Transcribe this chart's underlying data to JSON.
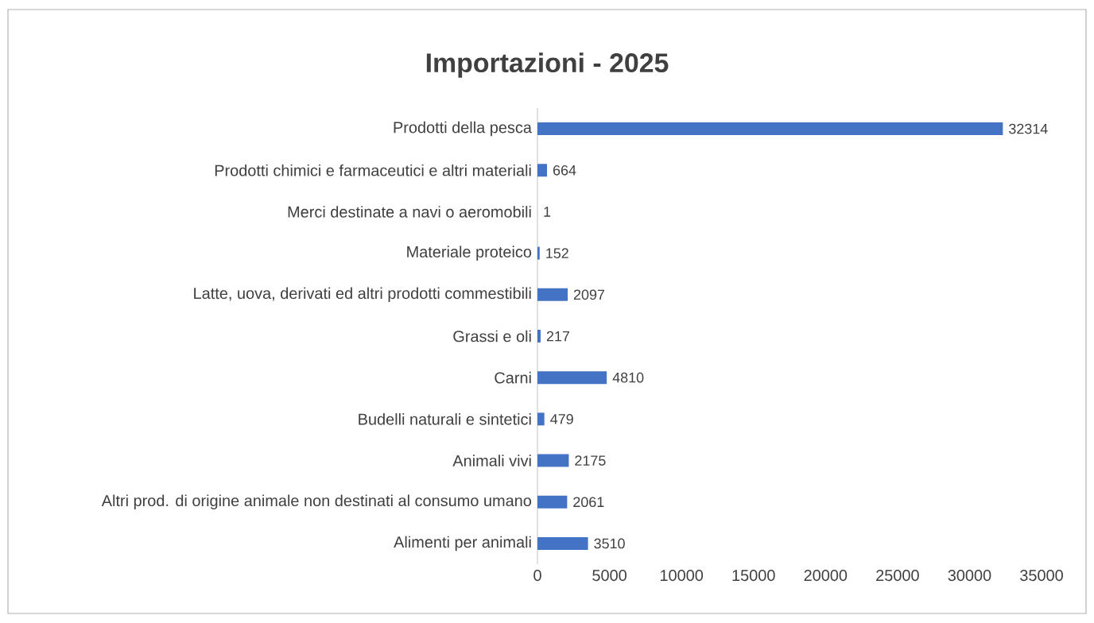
{
  "chart_data": {
    "type": "bar",
    "orientation": "horizontal",
    "title": "Importazioni  - 2025",
    "categories": [
      "Prodotti della pesca",
      "Prodotti chimici e farmaceutici e altri materiali",
      "Merci destinate a navi o aeromobili",
      "Materiale proteico",
      "Latte, uova, derivati ed altri prodotti commestibili",
      "Grassi e oli",
      "Carni",
      "Budelli naturali e sintetici",
      "Animali vivi",
      "Altri prod. di origine animale non destinati al consumo umano",
      "Alimenti per animali"
    ],
    "values": [
      32314,
      664,
      1,
      152,
      2097,
      217,
      4810,
      479,
      2175,
      2061,
      3510
    ],
    "color": "#4472c4",
    "data_labels": true,
    "xlim": [
      0,
      35000
    ],
    "xticks": [
      0,
      5000,
      10000,
      15000,
      20000,
      25000,
      30000,
      35000
    ]
  }
}
